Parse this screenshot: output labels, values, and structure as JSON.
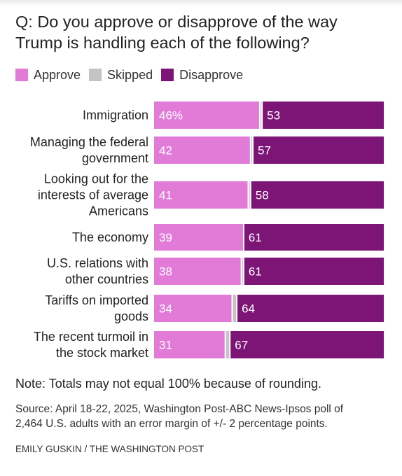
{
  "title_lines": [
    "Q: Do you approve or disapprove of the way",
    "Trump is handling each of the following?"
  ],
  "legend": [
    {
      "label": "Approve",
      "color": "#e27ad8"
    },
    {
      "label": "Skipped",
      "color": "#c4c4c4"
    },
    {
      "label": "Disapprove",
      "color": "#7d1576"
    }
  ],
  "chart_data": {
    "type": "bar",
    "orientation": "horizontal",
    "stacked": true,
    "xlim": [
      0,
      100
    ],
    "categories": [
      "Immigration",
      "Managing the federal government",
      "Looking out for the interests of average Americans",
      "The economy",
      "U.S. relations with other countries",
      "Tariffs on imported goods",
      "The recent turmoil in the stock market"
    ],
    "category_lines": [
      [
        "Immigration"
      ],
      [
        "Managing the federal",
        "government"
      ],
      [
        "Looking out for the",
        "interests of average",
        "Americans"
      ],
      [
        "The economy"
      ],
      [
        "U.S. relations with",
        "other countries"
      ],
      [
        "Tariffs on imported",
        "goods"
      ],
      [
        "The recent turmoil in",
        "the stock market"
      ]
    ],
    "series": [
      {
        "name": "Approve",
        "color": "#e27ad8",
        "values": [
          46,
          42,
          41,
          39,
          38,
          34,
          31
        ],
        "labels": [
          "46%",
          "42",
          "41",
          "39",
          "38",
          "34",
          "31"
        ]
      },
      {
        "name": "Skipped",
        "color": "#c4c4c4",
        "values": [
          1,
          1,
          1,
          0,
          1,
          2,
          2
        ],
        "labels": [
          "",
          "",
          "",
          "",
          "",
          "",
          ""
        ]
      },
      {
        "name": "Disapprove",
        "color": "#7d1576",
        "values": [
          53,
          57,
          58,
          61,
          61,
          64,
          67
        ],
        "labels": [
          "53",
          "57",
          "58",
          "61",
          "61",
          "64",
          "67"
        ]
      }
    ],
    "legend_position": "top-left",
    "grid": false
  },
  "note": "Note: Totals may not equal 100% because of rounding.",
  "source_lines": [
    "Source: April 18-22, 2025, Washington Post-ABC News-Ipsos poll of",
    "2,464 U.S. adults with an error margin of +/- 2 percentage points."
  ],
  "credit": "EMILY GUSKIN / THE WASHINGTON POST"
}
